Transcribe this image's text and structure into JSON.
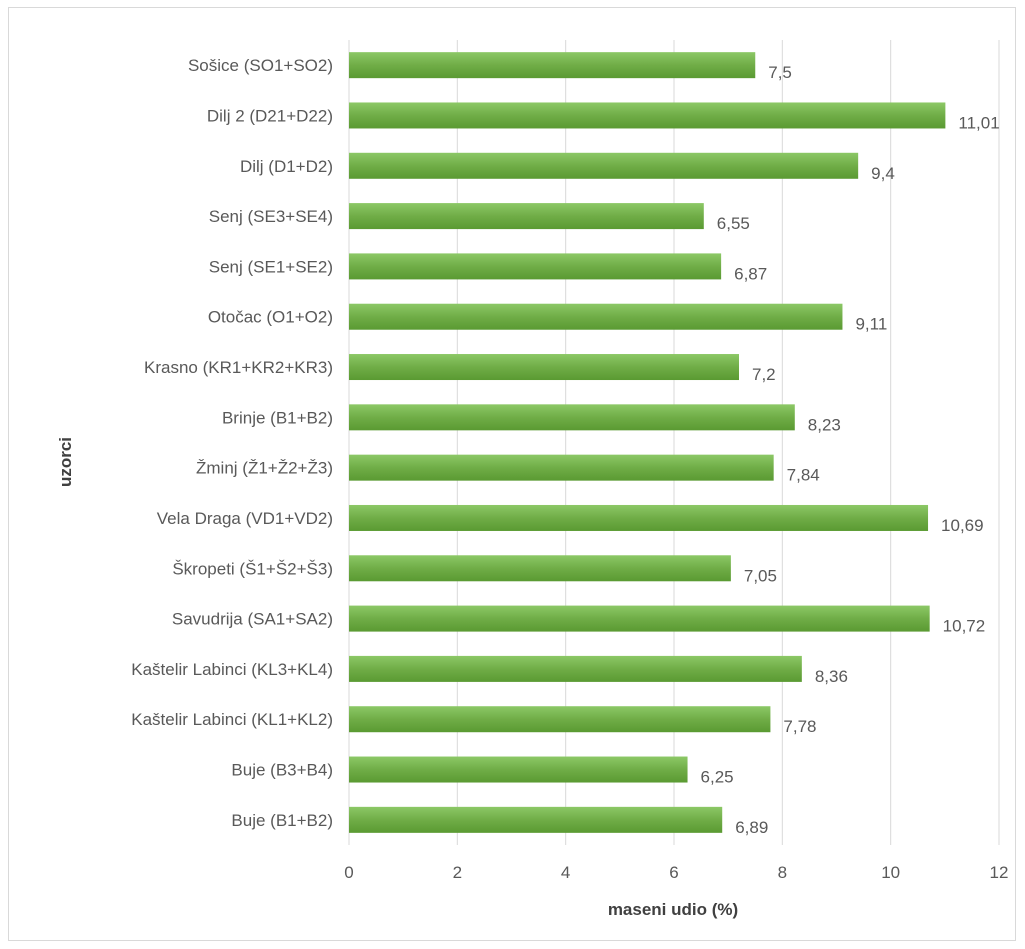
{
  "chart_data": {
    "type": "bar",
    "orientation": "horizontal",
    "xlabel": "maseni udio (%)",
    "ylabel": "uzorci",
    "xlim": [
      0,
      12
    ],
    "xticks": [
      0,
      2,
      4,
      6,
      8,
      10,
      12
    ],
    "grid": "vertical",
    "legend": "none",
    "bar_color": "#70ad47",
    "categories": [
      "Sošice (SO1+SO2)",
      "Dilj 2 (D21+D22)",
      "Dilj (D1+D2)",
      "Senj (SE3+SE4)",
      "Senj (SE1+SE2)",
      "Otočac (O1+O2)",
      "Krasno (KR1+KR2+KR3)",
      "Brinje (B1+B2)",
      "Žminj (Ž1+Ž2+Ž3)",
      "Vela Draga (VD1+VD2)",
      "Škropeti (Š1+Š2+Š3)",
      "Savudrija (SA1+SA2)",
      "Kaštelir Labinci (KL3+KL4)",
      "Kaštelir Labinci (KL1+KL2)",
      "Buje (B3+B4)",
      "Buje (B1+B2)"
    ],
    "values": [
      7.5,
      11.01,
      9.4,
      6.55,
      6.87,
      9.11,
      7.2,
      8.23,
      7.84,
      10.69,
      7.05,
      10.72,
      8.36,
      7.78,
      6.25,
      6.89
    ],
    "value_labels": [
      "7,5",
      "11,01",
      "9,4",
      "6,55",
      "6,87",
      "9,11",
      "7,2",
      "8,23",
      "7,84",
      "10,69",
      "7,05",
      "10,72",
      "8,36",
      "7,78",
      "6,25",
      "6,89"
    ]
  }
}
